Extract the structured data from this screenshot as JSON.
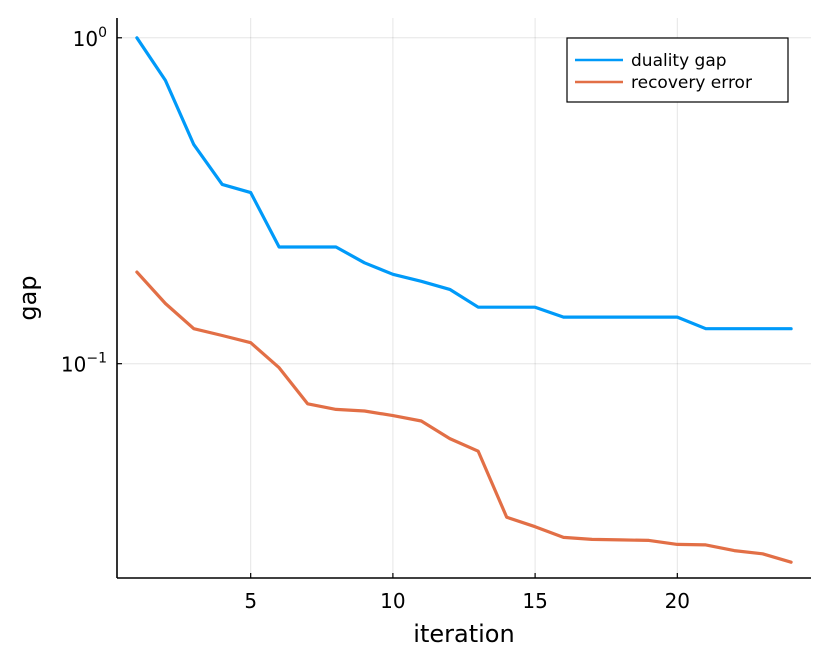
{
  "chart_data": {
    "type": "line",
    "title": "",
    "xlabel": "iteration",
    "ylabel": "gap",
    "xlim": [
      0.3,
      24.7
    ],
    "ylim": [
      0.022,
      1.15
    ],
    "y_scale": "log",
    "grid": true,
    "legend_position": "top-right",
    "x_ticks": [
      5,
      10,
      15,
      20
    ],
    "y_ticks": [
      {
        "value": 1.0,
        "base": "10",
        "exp": "0"
      },
      {
        "value": 0.1,
        "base": "10",
        "exp": "−1"
      }
    ],
    "series": [
      {
        "name": "duality gap",
        "color": "#009af9",
        "x": [
          1,
          2,
          3,
          4,
          5,
          6,
          7,
          8,
          9,
          10,
          11,
          12,
          13,
          14,
          15,
          16,
          17,
          18,
          19,
          20,
          21,
          22,
          23,
          24
        ],
        "y": [
          1.0,
          0.74,
          0.47,
          0.355,
          0.335,
          0.228,
          0.228,
          0.228,
          0.204,
          0.188,
          0.179,
          0.169,
          0.149,
          0.149,
          0.149,
          0.139,
          0.139,
          0.139,
          0.139,
          0.139,
          0.128,
          0.128,
          0.128,
          0.128
        ]
      },
      {
        "name": "recovery error",
        "color": "#e26f46",
        "x": [
          1,
          2,
          3,
          4,
          5,
          6,
          7,
          8,
          9,
          10,
          11,
          12,
          13,
          14,
          15,
          16,
          17,
          18,
          19,
          20,
          21,
          22,
          23,
          24
        ],
        "y": [
          0.191,
          0.153,
          0.128,
          0.122,
          0.116,
          0.0972,
          0.0753,
          0.0724,
          0.0716,
          0.0693,
          0.0667,
          0.0589,
          0.0539,
          0.0338,
          0.0316,
          0.0293,
          0.0289,
          0.0288,
          0.0287,
          0.0279,
          0.0278,
          0.0267,
          0.0261,
          0.0246
        ]
      }
    ]
  }
}
